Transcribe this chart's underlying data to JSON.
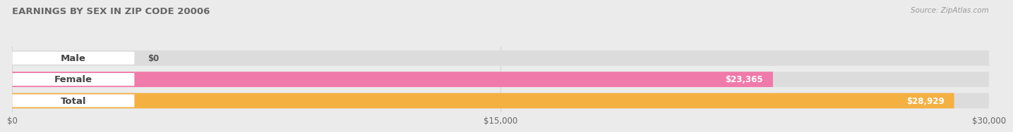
{
  "title": "EARNINGS BY SEX IN ZIP CODE 20006",
  "source_text": "Source: ZipAtlas.com",
  "categories": [
    "Male",
    "Female",
    "Total"
  ],
  "values": [
    0,
    23365,
    28929
  ],
  "bar_colors": [
    "#92b4d8",
    "#f07aaa",
    "#f5b042"
  ],
  "value_labels": [
    "$0",
    "$23,365",
    "$28,929"
  ],
  "xlim": [
    0,
    30000
  ],
  "xticks": [
    0,
    15000,
    30000
  ],
  "xticklabels": [
    "$0",
    "$15,000",
    "$30,000"
  ],
  "bar_height": 0.72,
  "background_color": "#ebebeb",
  "bar_bg_color": "#dcdcdc",
  "pill_color": "#ffffff",
  "grid_color": "#cccccc",
  "title_color": "#666666",
  "source_color": "#999999",
  "label_text_color": "#444444",
  "value_text_color": "#ffffff",
  "rounding_size": 0.35
}
